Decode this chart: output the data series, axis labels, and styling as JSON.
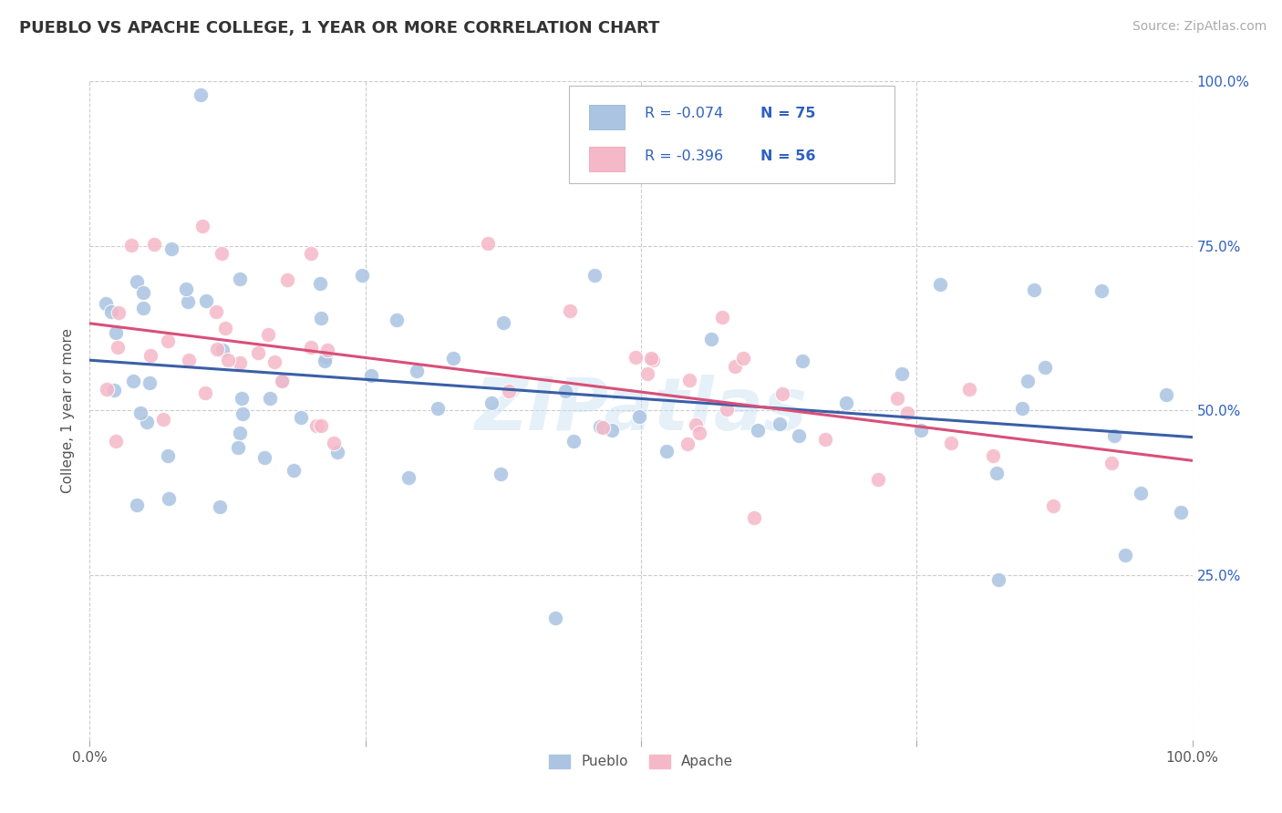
{
  "title": "PUEBLO VS APACHE COLLEGE, 1 YEAR OR MORE CORRELATION CHART",
  "source": "Source: ZipAtlas.com",
  "ylabel": "College, 1 year or more",
  "xlim": [
    0.0,
    1.0
  ],
  "ylim": [
    0.0,
    1.0
  ],
  "pueblo_color": "#aac4e2",
  "apache_color": "#f5b8c8",
  "pueblo_line_color": "#3a5fa8",
  "apache_line_color": "#d94f78",
  "r_text_color": "#3060c0",
  "n_text_color": "#3060c0",
  "watermark": "ZIPatlas",
  "bg_color": "#ffffff",
  "grid_color": "#cccccc",
  "pueblo_R": -0.074,
  "apache_R": -0.396,
  "pueblo_N": 75,
  "apache_N": 56
}
